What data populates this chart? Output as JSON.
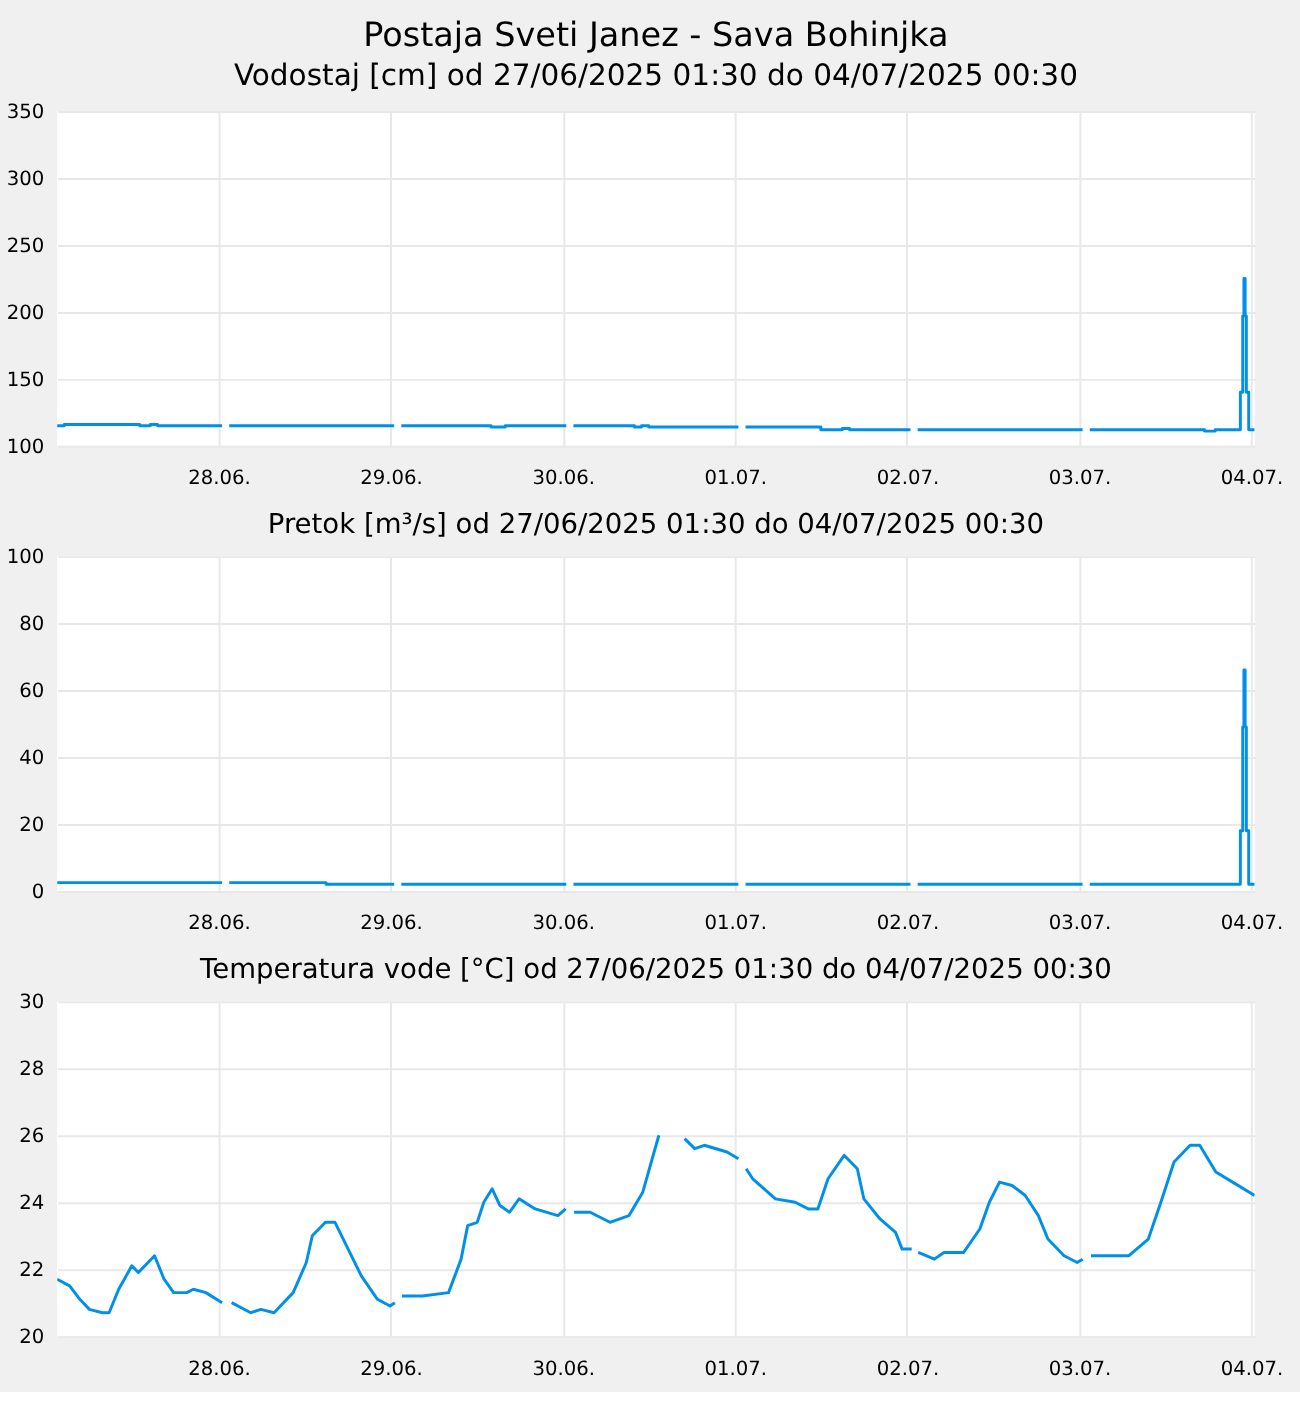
{
  "chart_data": [
    {
      "type": "step",
      "title": "Postaja Sveti Janez - Sava Bohinjka",
      "subtitle": "Vodostaj [cm] od 27/06/2025 01:30 do 04/07/2025 00:30",
      "grid": true,
      "x": [
        "2025-06-27T01:30",
        "2025-06-27T02:30",
        "2025-06-27T13:00",
        "2025-06-27T14:30",
        "2025-06-27T15:30",
        "2025-06-28T00:30",
        "2025-06-28T01:00",
        "2025-06-28T01:30",
        "2025-06-29T00:30",
        "2025-06-29T01:00",
        "2025-06-29T01:30",
        "2025-06-29T14:00",
        "2025-06-29T16:00",
        "2025-06-30T00:30",
        "2025-06-30T01:00",
        "2025-06-30T01:30",
        "2025-06-30T10:00",
        "2025-06-30T11:00",
        "2025-06-30T12:00",
        "2025-07-01T00:30",
        "2025-07-01T01:00",
        "2025-07-01T01:30",
        "2025-07-01T12:00",
        "2025-07-01T15:00",
        "2025-07-01T16:00",
        "2025-07-02T00:30",
        "2025-07-02T01:00",
        "2025-07-02T01:30",
        "2025-07-03T00:30",
        "2025-07-03T01:00",
        "2025-07-03T01:30",
        "2025-07-03T17:30",
        "2025-07-03T19:00",
        "2025-07-03T22:30",
        "2025-07-03T22:50",
        "2025-07-03T23:00",
        "2025-07-03T23:10",
        "2025-07-03T23:20",
        "2025-07-03T23:40",
        "2025-07-04T00:30"
      ],
      "series": [
        {
          "color": "#0090e8",
          "values": [
            115,
            116,
            115,
            116,
            115,
            115,
            null,
            115,
            115,
            null,
            115,
            114,
            115,
            115,
            null,
            115,
            114,
            115,
            114,
            114,
            null,
            114,
            112,
            113,
            112,
            112,
            null,
            112,
            112,
            null,
            112,
            111,
            112,
            140,
            197,
            225,
            197,
            140,
            112,
            112
          ]
        }
      ],
      "xlim": [
        "2025-06-27T01:30",
        "2025-07-04T00:30"
      ],
      "xticks": [
        {
          "value": "2025-06-28T00:00",
          "label": "28.06."
        },
        {
          "value": "2025-06-29T00:00",
          "label": "29.06."
        },
        {
          "value": "2025-06-30T00:00",
          "label": "30.06."
        },
        {
          "value": "2025-07-01T00:00",
          "label": "01.07."
        },
        {
          "value": "2025-07-02T00:00",
          "label": "02.07."
        },
        {
          "value": "2025-07-03T00:00",
          "label": "03.07."
        },
        {
          "value": "2025-07-04T00:00",
          "label": "04.07."
        }
      ],
      "ylim": [
        100,
        350
      ],
      "yticks": [
        100,
        150,
        200,
        250,
        300,
        350
      ]
    },
    {
      "type": "step",
      "title": "Pretok [m³/s] od 27/06/2025 01:30 do 04/07/2025 00:30",
      "grid": true,
      "x": [
        "2025-06-27T01:30",
        "2025-06-28T00:30",
        "2025-06-28T01:00",
        "2025-06-28T01:30",
        "2025-06-28T15:00",
        "2025-06-29T00:30",
        "2025-06-29T01:00",
        "2025-06-29T01:30",
        "2025-06-30T00:30",
        "2025-06-30T01:00",
        "2025-06-30T01:30",
        "2025-07-01T00:30",
        "2025-07-01T01:00",
        "2025-07-01T01:30",
        "2025-07-02T00:30",
        "2025-07-02T01:00",
        "2025-07-02T01:30",
        "2025-07-03T00:30",
        "2025-07-03T01:00",
        "2025-07-03T01:30",
        "2025-07-03T22:30",
        "2025-07-03T22:50",
        "2025-07-03T23:00",
        "2025-07-03T23:10",
        "2025-07-03T23:20",
        "2025-07-03T23:40",
        "2025-07-04T00:30"
      ],
      "series": [
        {
          "color": "#0090e8",
          "values": [
            2.5,
            2.5,
            null,
            2.5,
            2,
            2,
            null,
            2,
            2,
            null,
            2,
            2,
            null,
            2,
            2,
            null,
            2,
            2,
            null,
            2,
            18,
            49,
            66,
            49,
            18,
            2,
            2
          ]
        }
      ],
      "xlim": [
        "2025-06-27T01:30",
        "2025-07-04T00:30"
      ],
      "xticks": [
        {
          "value": "2025-06-28T00:00",
          "label": "28.06."
        },
        {
          "value": "2025-06-29T00:00",
          "label": "29.06."
        },
        {
          "value": "2025-06-30T00:00",
          "label": "30.06."
        },
        {
          "value": "2025-07-01T00:00",
          "label": "01.07."
        },
        {
          "value": "2025-07-02T00:00",
          "label": "02.07."
        },
        {
          "value": "2025-07-03T00:00",
          "label": "03.07."
        },
        {
          "value": "2025-07-04T00:00",
          "label": "04.07."
        }
      ],
      "ylim": [
        0,
        100
      ],
      "yticks": [
        0,
        20,
        40,
        60,
        80,
        100
      ]
    },
    {
      "type": "line",
      "title": "Temperatura vode [°C] od 27/06/2025 01:30 do 04/07/2025 00:30",
      "grid": true,
      "x": [
        "2025-06-27T01:30",
        "2025-06-27T03:15",
        "2025-06-27T04:40",
        "2025-06-27T06:00",
        "2025-06-27T07:50",
        "2025-06-27T08:45",
        "2025-06-27T10:05",
        "2025-06-27T11:55",
        "2025-06-27T12:50",
        "2025-06-27T15:05",
        "2025-06-27T16:25",
        "2025-06-27T17:45",
        "2025-06-27T19:35",
        "2025-06-27T20:30",
        "2025-06-27T22:15",
        "2025-06-28T00:30",
        "2025-06-28T01:10",
        "2025-06-28T01:50",
        "2025-06-28T04:30",
        "2025-06-28T05:55",
        "2025-06-28T07:45",
        "2025-06-28T10:25",
        "2025-06-28T12:15",
        "2025-06-28T13:05",
        "2025-06-28T14:55",
        "2025-06-28T16:15",
        "2025-06-28T18:05",
        "2025-06-28T19:55",
        "2025-06-28T22:10",
        "2025-06-28T23:55",
        "2025-06-29T00:35",
        "2025-06-29T01:05",
        "2025-06-29T01:35",
        "2025-06-29T04:25",
        "2025-06-29T08:05",
        "2025-06-29T09:50",
        "2025-06-29T10:45",
        "2025-06-29T12:05",
        "2025-06-29T13:00",
        "2025-06-29T14:10",
        "2025-06-29T15:15",
        "2025-06-29T16:35",
        "2025-06-29T17:55",
        "2025-06-29T20:10",
        "2025-06-29T23:20",
        "2025-06-30T00:25",
        "2025-06-30T01:00",
        "2025-06-30T01:35",
        "2025-06-30T03:50",
        "2025-06-30T06:35",
        "2025-06-30T09:15",
        "2025-06-30T11:10",
        "2025-06-30T13:25",
        "2025-06-30T15:00",
        "2025-06-30T17:00",
        "2025-06-30T18:25",
        "2025-06-30T19:45",
        "2025-06-30T22:55",
        "2025-07-01T00:30",
        "2025-07-01T01:00",
        "2025-07-01T01:35",
        "2025-07-01T02:30",
        "2025-07-01T05:40",
        "2025-07-01T08:25",
        "2025-07-01T10:15",
        "2025-07-01T11:35",
        "2025-07-01T13:00",
        "2025-07-01T15:15",
        "2025-07-01T17:05",
        "2025-07-01T18:00",
        "2025-07-01T20:15",
        "2025-07-01T22:25",
        "2025-07-01T23:20",
        "2025-07-02T00:40",
        "2025-07-02T01:05",
        "2025-07-02T01:35",
        "2025-07-02T03:50",
        "2025-07-02T05:10",
        "2025-07-02T07:55",
        "2025-07-02T10:10",
        "2025-07-02T11:30",
        "2025-07-02T12:55",
        "2025-07-02T14:40",
        "2025-07-02T16:30",
        "2025-07-02T18:20",
        "2025-07-02T19:40",
        "2025-07-02T21:55",
        "2025-07-02T23:45",
        "2025-07-03T00:30",
        "2025-07-03T01:05",
        "2025-07-03T01:40",
        "2025-07-03T06:55",
        "2025-07-03T09:40",
        "2025-07-03T11:25",
        "2025-07-03T13:15",
        "2025-07-03T15:30",
        "2025-07-03T16:50",
        "2025-07-03T19:05",
        "2025-07-03T21:25",
        "2025-07-04T00:30"
      ],
      "series": [
        {
          "color": "#0090e8",
          "values": [
            21.7,
            21.5,
            21.1,
            20.8,
            20.7,
            20.7,
            21.4,
            22.1,
            21.9,
            22.4,
            21.7,
            21.3,
            21.3,
            21.4,
            21.3,
            21.0,
            null,
            21.0,
            20.7,
            20.8,
            20.7,
            21.3,
            22.2,
            23.0,
            23.4,
            23.4,
            22.6,
            21.8,
            21.1,
            20.9,
            21.0,
            null,
            21.2,
            21.2,
            21.3,
            22.3,
            23.3,
            23.4,
            24.0,
            24.4,
            23.9,
            23.7,
            24.1,
            23.8,
            23.6,
            23.8,
            null,
            23.7,
            23.7,
            23.4,
            23.6,
            24.3,
            26.0,
            null,
            25.9,
            25.6,
            25.7,
            25.5,
            25.3,
            null,
            25.0,
            24.7,
            24.1,
            24.0,
            23.8,
            23.8,
            24.7,
            25.4,
            25.0,
            24.1,
            23.5,
            23.1,
            22.6,
            22.6,
            null,
            22.5,
            22.3,
            22.5,
            22.5,
            23.2,
            24.0,
            24.6,
            24.5,
            24.2,
            23.6,
            22.9,
            22.4,
            22.2,
            22.3,
            null,
            22.4,
            22.4,
            22.9,
            24.0,
            25.2,
            25.7,
            25.7,
            24.9,
            24.6,
            24.2
          ]
        }
      ],
      "xlim": [
        "2025-06-27T01:30",
        "2025-07-04T00:30"
      ],
      "xticks": [
        {
          "value": "2025-06-28T00:00",
          "label": "28.06."
        },
        {
          "value": "2025-06-29T00:00",
          "label": "29.06."
        },
        {
          "value": "2025-06-30T00:00",
          "label": "30.06."
        },
        {
          "value": "2025-07-01T00:00",
          "label": "01.07."
        },
        {
          "value": "2025-07-02T00:00",
          "label": "02.07."
        },
        {
          "value": "2025-07-03T00:00",
          "label": "03.07."
        },
        {
          "value": "2025-07-04T00:00",
          "label": "04.07."
        }
      ],
      "ylim": [
        20,
        30
      ],
      "yticks": [
        20,
        22,
        24,
        26,
        28,
        30
      ]
    }
  ]
}
